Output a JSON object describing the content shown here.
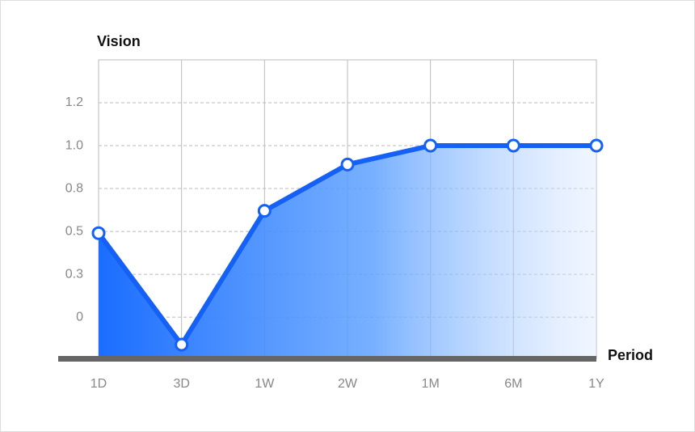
{
  "chart_data": {
    "type": "area",
    "y_label": "Vision",
    "x_label": "Period",
    "categories": [
      "1D",
      "3D",
      "1W",
      "2W",
      "1M",
      "6M",
      "1Y"
    ],
    "values": [
      0.49,
      -0.16,
      0.62,
      0.89,
      1.0,
      1.0,
      1.0
    ],
    "color": "#1560f5",
    "ylim": [
      -0.24,
      1.5
    ],
    "yticks": [
      0,
      {
        "value": 0.25,
        "label": "0.3"
      },
      0.5,
      {
        "value": 0.75,
        "label": "0.8"
      },
      {
        "value": 1,
        "label": "1.0"
      },
      {
        "value": 1.25,
        "label": "1.2"
      }
    ],
    "grid": true
  }
}
